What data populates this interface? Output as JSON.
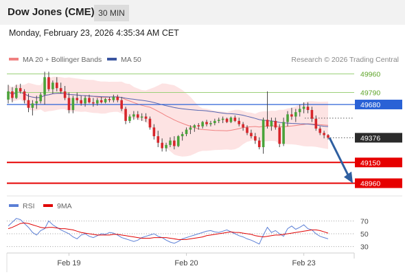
{
  "header": {
    "instrument": "Dow Jones (CME)",
    "timeframe": "30 MIN",
    "datetime": "Monday, February 23, 2026 4:35:34 AM CET"
  },
  "chart_data": [
    {
      "type": "candlestick",
      "legend": [
        {
          "label": "MA 20 + Bollinger Bands",
          "color": "#f08080"
        },
        {
          "label": "MA 50",
          "color": "#3a55a0"
        }
      ],
      "attribution": "Research © 2026 Trading Central",
      "x_tick_labels": [
        {
          "label": "Feb 19",
          "bar": 15
        },
        {
          "label": "Feb 20",
          "bar": 44
        },
        {
          "label": "Feb 23",
          "bar": 73
        }
      ],
      "levels": [
        {
          "value": 49960,
          "label": "49960",
          "kind": "resistance"
        },
        {
          "value": 49790,
          "label": "49790",
          "kind": "resistance"
        },
        {
          "value": 49680,
          "label": "49680",
          "kind": "pivot"
        },
        {
          "value": 49150,
          "label": "49150",
          "kind": "support"
        },
        {
          "value": 48960,
          "label": "48960",
          "kind": "support"
        }
      ],
      "last_price": {
        "value": 49376,
        "label": "49376"
      },
      "forecast_arrow": {
        "from": 49376,
        "to": 48960
      },
      "ohlc": [
        [
          49725,
          49860,
          49690,
          49800
        ],
        [
          49800,
          49840,
          49700,
          49740
        ],
        [
          49740,
          49860,
          49730,
          49830
        ],
        [
          49830,
          49870,
          49780,
          49800
        ],
        [
          49800,
          49820,
          49690,
          49720
        ],
        [
          49720,
          49780,
          49610,
          49650
        ],
        [
          49650,
          49720,
          49580,
          49690
        ],
        [
          49690,
          49760,
          49640,
          49710
        ],
        [
          49710,
          49790,
          49690,
          49770
        ],
        [
          49770,
          49980,
          49680,
          49930
        ],
        [
          49930,
          49980,
          49800,
          49820
        ],
        [
          49820,
          49900,
          49780,
          49880
        ],
        [
          49880,
          49930,
          49800,
          49830
        ],
        [
          49830,
          49880,
          49780,
          49800
        ],
        [
          49800,
          49850,
          49720,
          49740
        ],
        [
          49740,
          49790,
          49600,
          49630
        ],
        [
          49630,
          49760,
          49600,
          49740
        ],
        [
          49740,
          49790,
          49690,
          49720
        ],
        [
          49720,
          49760,
          49670,
          49690
        ],
        [
          49690,
          49760,
          49660,
          49740
        ],
        [
          49740,
          49770,
          49690,
          49700
        ],
        [
          49700,
          49740,
          49660,
          49690
        ],
        [
          49690,
          49740,
          49670,
          49720
        ],
        [
          49720,
          49750,
          49690,
          49700
        ],
        [
          49700,
          49740,
          49690,
          49730
        ],
        [
          49730,
          49750,
          49700,
          49720
        ],
        [
          49720,
          49770,
          49700,
          49750
        ],
        [
          49750,
          49770,
          49700,
          49720
        ],
        [
          49720,
          49750,
          49620,
          49640
        ],
        [
          49640,
          49660,
          49500,
          49530
        ],
        [
          49530,
          49590,
          49510,
          49570
        ],
        [
          49570,
          49620,
          49540,
          49590
        ],
        [
          49590,
          49620,
          49540,
          49560
        ],
        [
          49560,
          49600,
          49530,
          49570
        ],
        [
          49570,
          49600,
          49520,
          49550
        ],
        [
          49550,
          49570,
          49450,
          49470
        ],
        [
          49470,
          49500,
          49360,
          49390
        ],
        [
          49390,
          49440,
          49290,
          49330
        ],
        [
          49330,
          49370,
          49250,
          49280
        ],
        [
          49280,
          49330,
          49250,
          49310
        ],
        [
          49310,
          49380,
          49290,
          49350
        ],
        [
          49350,
          49390,
          49270,
          49300
        ],
        [
          49300,
          49400,
          49290,
          49390
        ],
        [
          49390,
          49430,
          49350,
          49410
        ],
        [
          49410,
          49470,
          49390,
          49450
        ],
        [
          49450,
          49490,
          49410,
          49470
        ],
        [
          49470,
          49500,
          49430,
          49490
        ],
        [
          49490,
          49510,
          49450,
          49480
        ],
        [
          49480,
          49530,
          49460,
          49520
        ],
        [
          49520,
          49540,
          49480,
          49500
        ],
        [
          49500,
          49530,
          49480,
          49510
        ],
        [
          49510,
          49550,
          49490,
          49530
        ],
        [
          49530,
          49560,
          49510,
          49540
        ],
        [
          49540,
          49570,
          49510,
          49550
        ],
        [
          49550,
          49560,
          49510,
          49520
        ],
        [
          49520,
          49570,
          49510,
          49560
        ],
        [
          49560,
          49580,
          49520,
          49530
        ],
        [
          49530,
          49560,
          49480,
          49500
        ],
        [
          49500,
          49520,
          49440,
          49470
        ],
        [
          49470,
          49490,
          49400,
          49420
        ],
        [
          49420,
          49450,
          49370,
          49390
        ],
        [
          49390,
          49420,
          49320,
          49350
        ],
        [
          49350,
          49380,
          49270,
          49290
        ],
        [
          49290,
          49560,
          49230,
          49540
        ],
        [
          49540,
          49800,
          49460,
          49480
        ],
        [
          49480,
          49560,
          49440,
          49530
        ],
        [
          49530,
          49560,
          49450,
          49470
        ],
        [
          49470,
          49500,
          49290,
          49320
        ],
        [
          49320,
          49560,
          49300,
          49520
        ],
        [
          49520,
          49620,
          49480,
          49590
        ],
        [
          49590,
          49650,
          49540,
          49570
        ],
        [
          49570,
          49640,
          49520,
          49610
        ],
        [
          49610,
          49680,
          49570,
          49640
        ],
        [
          49640,
          49700,
          49600,
          49660
        ],
        [
          49660,
          49700,
          49600,
          49630
        ],
        [
          49630,
          49660,
          49520,
          49550
        ],
        [
          49550,
          49580,
          49440,
          49460
        ],
        [
          49460,
          49480,
          49400,
          49420
        ],
        [
          49420,
          49440,
          49370,
          49400
        ],
        [
          49400,
          49410,
          49360,
          49376
        ]
      ]
    },
    {
      "type": "line",
      "legend": [
        {
          "label": "RSI",
          "color": "#5b7fd6"
        },
        {
          "label": "9MA",
          "color": "#e00000"
        }
      ],
      "ylim": [
        20,
        80
      ],
      "y_ticks": [
        70,
        50,
        30
      ],
      "series": [
        {
          "name": "RSI",
          "color": "#5b7fd6",
          "values": [
            62,
            68,
            74,
            72,
            66,
            60,
            52,
            48,
            55,
            58,
            70,
            64,
            60,
            56,
            53,
            50,
            45,
            42,
            48,
            50,
            46,
            44,
            47,
            50,
            49,
            52,
            51,
            48,
            44,
            42,
            40,
            38,
            40,
            44,
            46,
            48,
            50,
            46,
            44,
            40,
            37,
            35,
            38,
            42,
            44,
            46,
            48,
            50,
            52,
            54,
            55,
            53,
            52,
            54,
            56,
            53,
            50,
            47,
            45,
            42,
            40,
            37,
            34,
            48,
            60,
            52,
            55,
            50,
            46,
            58,
            62,
            57,
            60,
            64,
            58,
            56,
            50,
            46,
            44,
            42
          ]
        },
        {
          "name": "9MA",
          "color": "#e00000",
          "values": [
            58,
            60,
            63,
            66,
            67,
            66,
            64,
            62,
            60,
            59,
            60,
            60,
            59,
            58,
            58,
            57,
            56,
            54,
            52,
            51,
            50,
            49,
            48,
            48,
            48,
            48,
            49,
            49,
            48,
            47,
            46,
            45,
            44,
            43,
            43,
            43,
            44,
            44,
            44,
            44,
            43,
            42,
            41,
            41,
            41,
            42,
            43,
            44,
            45,
            47,
            48,
            49,
            50,
            51,
            52,
            53,
            52,
            52,
            51,
            50,
            49,
            47,
            46,
            45,
            46,
            47,
            48,
            48,
            49,
            50,
            51,
            52,
            53,
            54,
            55,
            56,
            56,
            55,
            53,
            51
          ]
        }
      ]
    }
  ]
}
